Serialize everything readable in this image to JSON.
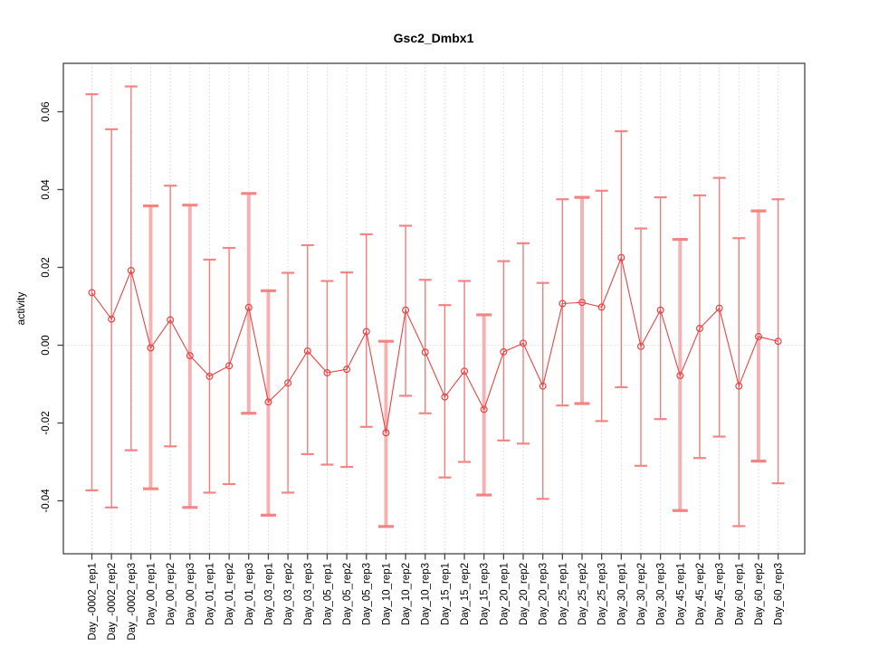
{
  "figure": {
    "title": "Gsc2_Dmbx1",
    "background": "#ffffff"
  },
  "chart_data": {
    "type": "scatter",
    "title": "Gsc2_Dmbx1",
    "xlabel": "",
    "ylabel": "activity",
    "ylim": [
      -0.0536,
      0.0724
    ],
    "grid": "dotted vertical gridline at every category; dotted horizontal line at y=0",
    "legend": "none",
    "marker": "open-circle connected by line with error bars",
    "colors": {
      "series": "#e84444",
      "thin_bar": "#ef6a6a",
      "thick_bar": "#f5a6a6",
      "cap": "#f37f7f",
      "gridline": "#d8d8d8",
      "axis": "#444444"
    },
    "y_ticks": [
      {
        "label": "-0.04",
        "value": -0.04
      },
      {
        "label": "-0.02",
        "value": -0.02
      },
      {
        "label": "0.00",
        "value": 0.0
      },
      {
        "label": "0.02",
        "value": 0.02
      },
      {
        "label": "0.04",
        "value": 0.04
      },
      {
        "label": "0.06",
        "value": 0.06
      }
    ],
    "categories": [
      "Day_-0002_rep1",
      "Day_-0002_rep2",
      "Day_-0002_rep3",
      "Day_00_rep1",
      "Day_00_rep2",
      "Day_00_rep3",
      "Day_01_rep1",
      "Day_01_rep2",
      "Day_01_rep3",
      "Day_03_rep1",
      "Day_03_rep2",
      "Day_03_rep3",
      "Day_05_rep1",
      "Day_05_rep2",
      "Day_05_rep3",
      "Day_10_rep1",
      "Day_10_rep2",
      "Day_10_rep3",
      "Day_15_rep1",
      "Day_15_rep2",
      "Day_15_rep3",
      "Day_20_rep1",
      "Day_20_rep2",
      "Day_20_rep3",
      "Day_25_rep1",
      "Day_25_rep2",
      "Day_25_rep3",
      "Day_30_rep1",
      "Day_30_rep2",
      "Day_30_rep3",
      "Day_45_rep1",
      "Day_45_rep2",
      "Day_45_rep3",
      "Day_60_rep1",
      "Day_60_rep2",
      "Day_60_rep3"
    ],
    "values": [
      0.0135,
      0.0067,
      0.0192,
      -0.0007,
      0.0065,
      -0.0027,
      -0.008,
      -0.0053,
      0.0097,
      -0.0146,
      -0.0097,
      -0.0015,
      -0.0071,
      -0.0062,
      0.0035,
      -0.0225,
      0.009,
      -0.0018,
      -0.0133,
      -0.0067,
      -0.0165,
      -0.0017,
      0.0005,
      -0.0105,
      0.0107,
      0.011,
      0.0098,
      0.0225,
      -0.0003,
      0.009,
      -0.0078,
      0.0043,
      0.0095,
      -0.0105,
      0.0022,
      0.001
    ],
    "err_high": [
      0.0645,
      0.0555,
      0.0665,
      0.0358,
      0.041,
      0.036,
      0.022,
      0.025,
      0.039,
      0.014,
      0.0186,
      0.0257,
      0.0165,
      0.0187,
      0.0285,
      0.001,
      0.0307,
      0.0168,
      0.0103,
      0.0165,
      0.0078,
      0.0216,
      0.0262,
      0.016,
      0.0375,
      0.038,
      0.0397,
      0.055,
      0.03,
      0.038,
      0.0272,
      0.0385,
      0.043,
      0.0275,
      0.0345,
      0.0375
    ],
    "err_low": [
      -0.0373,
      -0.0417,
      -0.027,
      -0.0369,
      -0.026,
      -0.0417,
      -0.0379,
      -0.0357,
      -0.0175,
      -0.0437,
      -0.0379,
      -0.028,
      -0.0307,
      -0.0313,
      -0.021,
      -0.0466,
      -0.013,
      -0.0175,
      -0.034,
      -0.03,
      -0.0385,
      -0.0245,
      -0.0253,
      -0.0395,
      -0.0155,
      -0.015,
      -0.0195,
      -0.0108,
      -0.031,
      -0.019,
      -0.0425,
      -0.029,
      -0.0235,
      -0.0465,
      -0.0298,
      -0.0355
    ],
    "thick_bar_indices": [
      3,
      5,
      8,
      9,
      15,
      20,
      25,
      30,
      34
    ]
  }
}
